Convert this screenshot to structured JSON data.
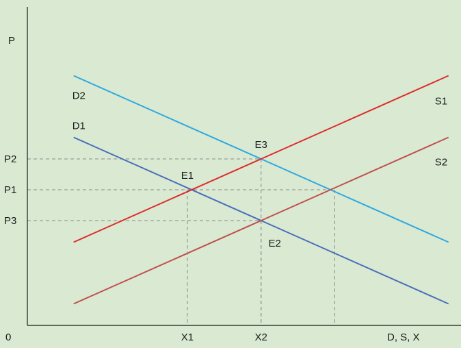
{
  "colors": {
    "background": "#d9e9d2",
    "axis": "#1a1a1a",
    "guide": "#8a8a8a",
    "S1": "#e02b2b",
    "S2": "#c0504d",
    "D1": "#4a6fba",
    "D2": "#2fa9e0"
  },
  "chart_data": {
    "type": "line",
    "title": "",
    "xlabel": "D, S, X",
    "ylabel": "P",
    "origin_label": "0",
    "xlim": [
      0,
      10
    ],
    "ylim": [
      0,
      10
    ],
    "grid": false,
    "series": [
      {
        "name": "D2",
        "color_key": "D2",
        "x": [
          1.1,
          10.0
        ],
        "y": [
          8.1,
          2.7
        ]
      },
      {
        "name": "D1",
        "color_key": "D1",
        "x": [
          1.1,
          10.0
        ],
        "y": [
          6.1,
          0.7
        ]
      },
      {
        "name": "S1",
        "color_key": "S1",
        "x": [
          1.1,
          10.0
        ],
        "y": [
          2.7,
          8.1
        ]
      },
      {
        "name": "S2",
        "color_key": "S2",
        "x": [
          1.1,
          10.0
        ],
        "y": [
          0.7,
          6.1
        ]
      }
    ],
    "x_ticks": [
      {
        "label": "X1",
        "value": 3.8
      },
      {
        "label": "X2",
        "value": 5.55
      }
    ],
    "y_ticks": [
      {
        "label": "P2",
        "value": 5.4
      },
      {
        "label": "P1",
        "value": 4.4
      },
      {
        "label": "P3",
        "value": 3.4
      }
    ],
    "equilibria": [
      {
        "label": "E1",
        "x": 3.8,
        "y": 4.4,
        "label_pos": "above"
      },
      {
        "label": "E3",
        "x": 5.55,
        "y": 5.4,
        "label_pos": "above"
      },
      {
        "label": "E2",
        "x": 5.55,
        "y": 3.4,
        "label_pos": "below"
      },
      {
        "label": "",
        "x": 7.3,
        "y": 4.4,
        "label_pos": "none"
      }
    ]
  }
}
